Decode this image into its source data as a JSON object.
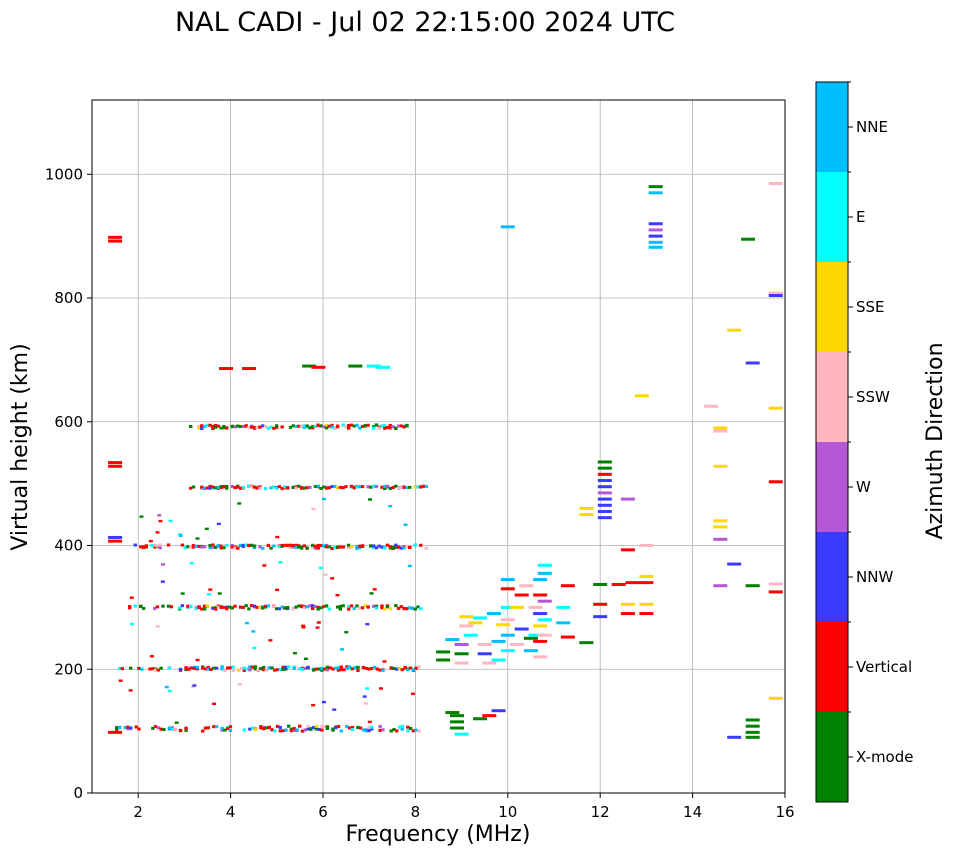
{
  "chart_data": {
    "type": "scatter",
    "title": "NAL CADI - Jul 02 22:15:00 2024 UTC",
    "xlabel": "Frequency (MHz)",
    "ylabel": "Virtual height (km)",
    "xlim": [
      1,
      16
    ],
    "ylim": [
      0,
      1120
    ],
    "xticks": [
      2,
      4,
      6,
      8,
      10,
      12,
      14,
      16
    ],
    "yticks": [
      0,
      200,
      400,
      600,
      800,
      1000
    ],
    "grid": true,
    "colorbar": {
      "label": "Azimuth Direction",
      "categories": [
        {
          "name": "X-mode",
          "color": "#008000"
        },
        {
          "name": "Vertical",
          "color": "#ff0000"
        },
        {
          "name": "NNW",
          "color": "#3a3aff"
        },
        {
          "name": "W",
          "color": "#b657d8"
        },
        {
          "name": "SSW",
          "color": "#ffb6c1"
        },
        {
          "name": "SSE",
          "color": "#ffd700"
        },
        {
          "name": "E",
          "color": "#00ffff"
        },
        {
          "name": "NNE",
          "color": "#00bfff"
        }
      ]
    },
    "bands": [
      {
        "name": "band-100",
        "x": [
          1.5,
          8.1
        ],
        "h": 104,
        "spread": 4
      },
      {
        "name": "band-200",
        "x": [
          1.5,
          8.1
        ],
        "h": 201,
        "spread": 3
      },
      {
        "name": "band-300",
        "x": [
          1.6,
          8.1
        ],
        "h": 300,
        "spread": 3
      },
      {
        "name": "band-400",
        "x": [
          1.9,
          8.2
        ],
        "h": 398,
        "spread": 3
      },
      {
        "name": "band-495",
        "x": [
          3.1,
          8.2
        ],
        "h": 494,
        "spread": 2
      },
      {
        "name": "band-592",
        "x": [
          3.1,
          7.8
        ],
        "h": 592,
        "spread": 3
      }
    ],
    "points": [
      {
        "x": 1.5,
        "y": 892,
        "c": 1
      },
      {
        "x": 1.5,
        "y": 898,
        "c": 1
      },
      {
        "x": 1.5,
        "y": 528,
        "c": 1
      },
      {
        "x": 1.5,
        "y": 534,
        "c": 1
      },
      {
        "x": 1.5,
        "y": 407,
        "c": 1
      },
      {
        "x": 1.5,
        "y": 413,
        "c": 2
      },
      {
        "x": 1.5,
        "y": 98,
        "c": 1
      },
      {
        "x": 4.4,
        "y": 686,
        "c": 1
      },
      {
        "x": 3.9,
        "y": 686,
        "c": 1
      },
      {
        "x": 5.7,
        "y": 690,
        "c": 0
      },
      {
        "x": 5.9,
        "y": 688,
        "c": 1
      },
      {
        "x": 6.7,
        "y": 690,
        "c": 0
      },
      {
        "x": 7.1,
        "y": 690,
        "c": 6
      },
      {
        "x": 7.3,
        "y": 688,
        "c": 6
      },
      {
        "x": 8.8,
        "y": 130,
        "c": 0
      },
      {
        "x": 8.9,
        "y": 125,
        "c": 0
      },
      {
        "x": 8.9,
        "y": 115,
        "c": 0
      },
      {
        "x": 8.9,
        "y": 105,
        "c": 0
      },
      {
        "x": 9.0,
        "y": 95,
        "c": 6
      },
      {
        "x": 9.4,
        "y": 120,
        "c": 0
      },
      {
        "x": 9.6,
        "y": 125,
        "c": 1
      },
      {
        "x": 9.8,
        "y": 133,
        "c": 2
      },
      {
        "x": 8.6,
        "y": 215,
        "c": 0
      },
      {
        "x": 8.6,
        "y": 228,
        "c": 0
      },
      {
        "x": 8.8,
        "y": 248,
        "c": 7
      },
      {
        "x": 9.0,
        "y": 240,
        "c": 3
      },
      {
        "x": 9.0,
        "y": 225,
        "c": 0
      },
      {
        "x": 9.0,
        "y": 210,
        "c": 4
      },
      {
        "x": 9.1,
        "y": 270,
        "c": 4
      },
      {
        "x": 9.1,
        "y": 285,
        "c": 5
      },
      {
        "x": 9.2,
        "y": 255,
        "c": 6
      },
      {
        "x": 9.3,
        "y": 275,
        "c": 5
      },
      {
        "x": 9.4,
        "y": 283,
        "c": 6
      },
      {
        "x": 9.5,
        "y": 240,
        "c": 4
      },
      {
        "x": 9.5,
        "y": 225,
        "c": 2
      },
      {
        "x": 9.6,
        "y": 210,
        "c": 4
      },
      {
        "x": 9.7,
        "y": 290,
        "c": 7
      },
      {
        "x": 9.8,
        "y": 245,
        "c": 7
      },
      {
        "x": 9.8,
        "y": 215,
        "c": 6
      },
      {
        "x": 9.9,
        "y": 272,
        "c": 5
      },
      {
        "x": 10.0,
        "y": 345,
        "c": 7
      },
      {
        "x": 10.0,
        "y": 330,
        "c": 1
      },
      {
        "x": 10.0,
        "y": 300,
        "c": 6
      },
      {
        "x": 10.0,
        "y": 280,
        "c": 4
      },
      {
        "x": 10.0,
        "y": 255,
        "c": 7
      },
      {
        "x": 10.0,
        "y": 230,
        "c": 6
      },
      {
        "x": 10.0,
        "y": 915,
        "c": 7
      },
      {
        "x": 10.2,
        "y": 300,
        "c": 5
      },
      {
        "x": 10.2,
        "y": 240,
        "c": 4
      },
      {
        "x": 10.3,
        "y": 320,
        "c": 1
      },
      {
        "x": 10.3,
        "y": 265,
        "c": 2
      },
      {
        "x": 10.4,
        "y": 335,
        "c": 4
      },
      {
        "x": 10.5,
        "y": 230,
        "c": 7
      },
      {
        "x": 10.5,
        "y": 250,
        "c": 0
      },
      {
        "x": 10.6,
        "y": 300,
        "c": 4
      },
      {
        "x": 10.6,
        "y": 255,
        "c": 6
      },
      {
        "x": 10.7,
        "y": 345,
        "c": 7
      },
      {
        "x": 10.7,
        "y": 320,
        "c": 1
      },
      {
        "x": 10.7,
        "y": 290,
        "c": 2
      },
      {
        "x": 10.7,
        "y": 270,
        "c": 5
      },
      {
        "x": 10.7,
        "y": 245,
        "c": 1
      },
      {
        "x": 10.7,
        "y": 220,
        "c": 4
      },
      {
        "x": 10.8,
        "y": 368,
        "c": 6
      },
      {
        "x": 10.8,
        "y": 355,
        "c": 7
      },
      {
        "x": 10.8,
        "y": 310,
        "c": 3
      },
      {
        "x": 10.8,
        "y": 280,
        "c": 6
      },
      {
        "x": 10.8,
        "y": 255,
        "c": 4
      },
      {
        "x": 11.2,
        "y": 300,
        "c": 6
      },
      {
        "x": 11.2,
        "y": 275,
        "c": 7
      },
      {
        "x": 11.3,
        "y": 335,
        "c": 1
      },
      {
        "x": 11.3,
        "y": 252,
        "c": 1
      },
      {
        "x": 11.7,
        "y": 460,
        "c": 5
      },
      {
        "x": 11.7,
        "y": 450,
        "c": 5
      },
      {
        "x": 11.7,
        "y": 243,
        "c": 0
      },
      {
        "x": 12.0,
        "y": 337,
        "c": 0
      },
      {
        "x": 12.0,
        "y": 305,
        "c": 1
      },
      {
        "x": 12.0,
        "y": 285,
        "c": 2
      },
      {
        "x": 12.1,
        "y": 535,
        "c": 0
      },
      {
        "x": 12.1,
        "y": 525,
        "c": 0
      },
      {
        "x": 12.1,
        "y": 515,
        "c": 1
      },
      {
        "x": 12.1,
        "y": 505,
        "c": 2
      },
      {
        "x": 12.1,
        "y": 495,
        "c": 2
      },
      {
        "x": 12.1,
        "y": 485,
        "c": 3
      },
      {
        "x": 12.1,
        "y": 475,
        "c": 2
      },
      {
        "x": 12.1,
        "y": 465,
        "c": 2
      },
      {
        "x": 12.1,
        "y": 455,
        "c": 2
      },
      {
        "x": 12.1,
        "y": 445,
        "c": 2
      },
      {
        "x": 12.6,
        "y": 475,
        "c": 3
      },
      {
        "x": 12.6,
        "y": 393,
        "c": 1
      },
      {
        "x": 12.4,
        "y": 337,
        "c": 1
      },
      {
        "x": 12.7,
        "y": 340,
        "c": 1
      },
      {
        "x": 12.6,
        "y": 305,
        "c": 5
      },
      {
        "x": 12.6,
        "y": 290,
        "c": 1
      },
      {
        "x": 13.0,
        "y": 400,
        "c": 4
      },
      {
        "x": 13.0,
        "y": 350,
        "c": 5
      },
      {
        "x": 13.0,
        "y": 340,
        "c": 1
      },
      {
        "x": 13.0,
        "y": 305,
        "c": 5
      },
      {
        "x": 13.0,
        "y": 290,
        "c": 1
      },
      {
        "x": 12.9,
        "y": 642,
        "c": 5
      },
      {
        "x": 13.2,
        "y": 980,
        "c": 0
      },
      {
        "x": 13.2,
        "y": 970,
        "c": 7
      },
      {
        "x": 13.2,
        "y": 920,
        "c": 2
      },
      {
        "x": 13.2,
        "y": 910,
        "c": 3
      },
      {
        "x": 13.2,
        "y": 900,
        "c": 2
      },
      {
        "x": 13.2,
        "y": 890,
        "c": 7
      },
      {
        "x": 13.2,
        "y": 882,
        "c": 7
      },
      {
        "x": 14.4,
        "y": 625,
        "c": 4
      },
      {
        "x": 14.6,
        "y": 590,
        "c": 5
      },
      {
        "x": 14.6,
        "y": 585,
        "c": 4
      },
      {
        "x": 14.6,
        "y": 528,
        "c": 5
      },
      {
        "x": 14.6,
        "y": 440,
        "c": 5
      },
      {
        "x": 14.6,
        "y": 430,
        "c": 5
      },
      {
        "x": 14.6,
        "y": 410,
        "c": 3
      },
      {
        "x": 14.6,
        "y": 335,
        "c": 3
      },
      {
        "x": 14.9,
        "y": 748,
        "c": 5
      },
      {
        "x": 14.9,
        "y": 370,
        "c": 2
      },
      {
        "x": 14.9,
        "y": 90,
        "c": 2
      },
      {
        "x": 15.2,
        "y": 895,
        "c": 0
      },
      {
        "x": 15.3,
        "y": 695,
        "c": 2
      },
      {
        "x": 15.3,
        "y": 335,
        "c": 0
      },
      {
        "x": 15.3,
        "y": 118,
        "c": 0
      },
      {
        "x": 15.3,
        "y": 108,
        "c": 0
      },
      {
        "x": 15.3,
        "y": 98,
        "c": 0
      },
      {
        "x": 15.3,
        "y": 90,
        "c": 0
      },
      {
        "x": 15.8,
        "y": 985,
        "c": 4
      },
      {
        "x": 15.8,
        "y": 808,
        "c": 4
      },
      {
        "x": 15.8,
        "y": 804,
        "c": 2
      },
      {
        "x": 15.8,
        "y": 622,
        "c": 5
      },
      {
        "x": 15.8,
        "y": 503,
        "c": 1
      },
      {
        "x": 15.8,
        "y": 338,
        "c": 4
      },
      {
        "x": 15.8,
        "y": 325,
        "c": 1
      },
      {
        "x": 15.8,
        "y": 153,
        "c": 5
      }
    ]
  }
}
